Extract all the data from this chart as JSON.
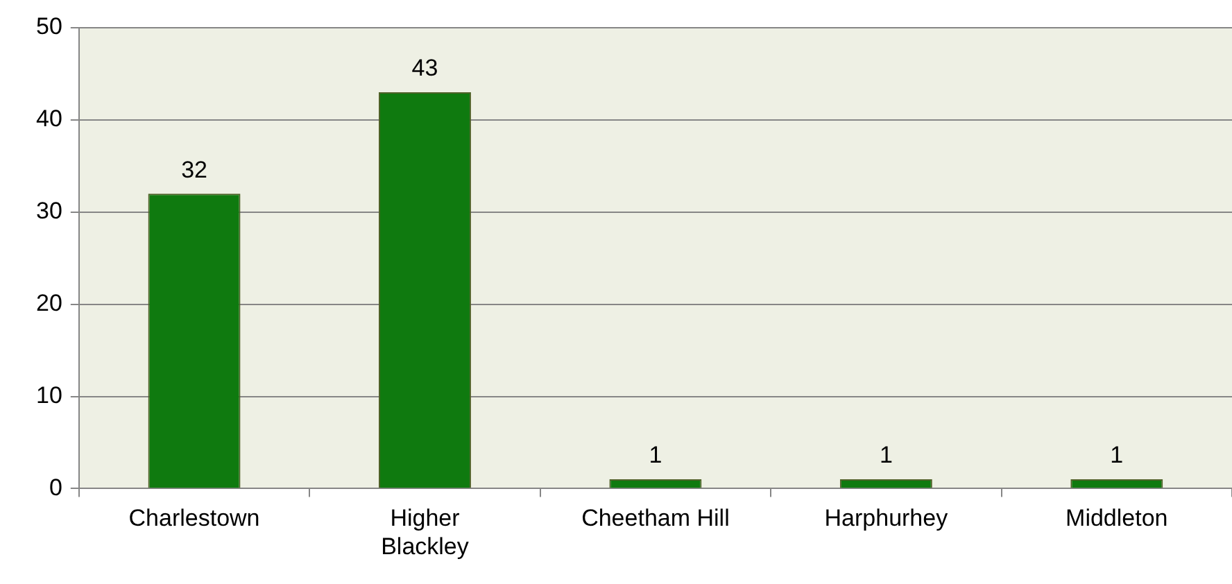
{
  "chart_data": {
    "type": "bar",
    "categories": [
      "Charlestown",
      "Higher\nBlackley",
      "Cheetham Hill",
      "Harphurhey",
      "Middleton"
    ],
    "values": [
      32,
      43,
      1,
      1,
      1
    ],
    "color": "#0f7a0f",
    "ylim": [
      0,
      50
    ],
    "yticks": [
      0,
      10,
      20,
      30,
      40,
      50
    ],
    "grid": "y",
    "data_labels": true
  }
}
